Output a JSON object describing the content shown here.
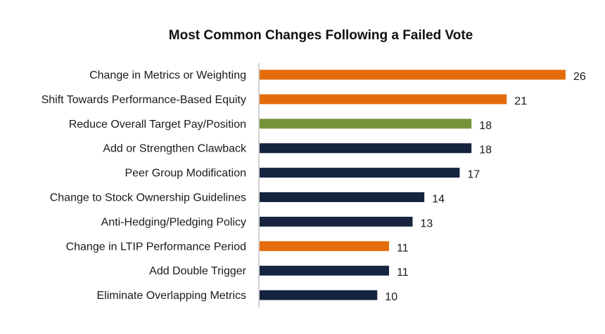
{
  "chart_data": {
    "type": "bar",
    "orientation": "horizontal",
    "title": "Most Common Changes Following a Failed Vote",
    "xlabel": "",
    "ylabel": "",
    "xlim": [
      0,
      26
    ],
    "grid": false,
    "legend": "none",
    "categories": [
      "Change in Metrics or Weighting",
      "Shift Towards Performance-Based Equity",
      "Reduce Overall Target Pay/Position",
      "Add or Strengthen Clawback",
      "Peer Group Modification",
      "Change to Stock Ownership Guidelines",
      "Anti-Hedging/Pledging Policy",
      "Change in LTIP Performance Period",
      "Add Double Trigger",
      "Eliminate Overlapping Metrics"
    ],
    "values": [
      26,
      21,
      18,
      18,
      17,
      14,
      13,
      11,
      11,
      10
    ],
    "bar_colors": [
      "#e46c0a",
      "#e46c0a",
      "#76933c",
      "#16243f",
      "#16243f",
      "#16243f",
      "#16243f",
      "#e46c0a",
      "#16243f",
      "#16243f"
    ],
    "axis_color": "#a6a6a6"
  }
}
